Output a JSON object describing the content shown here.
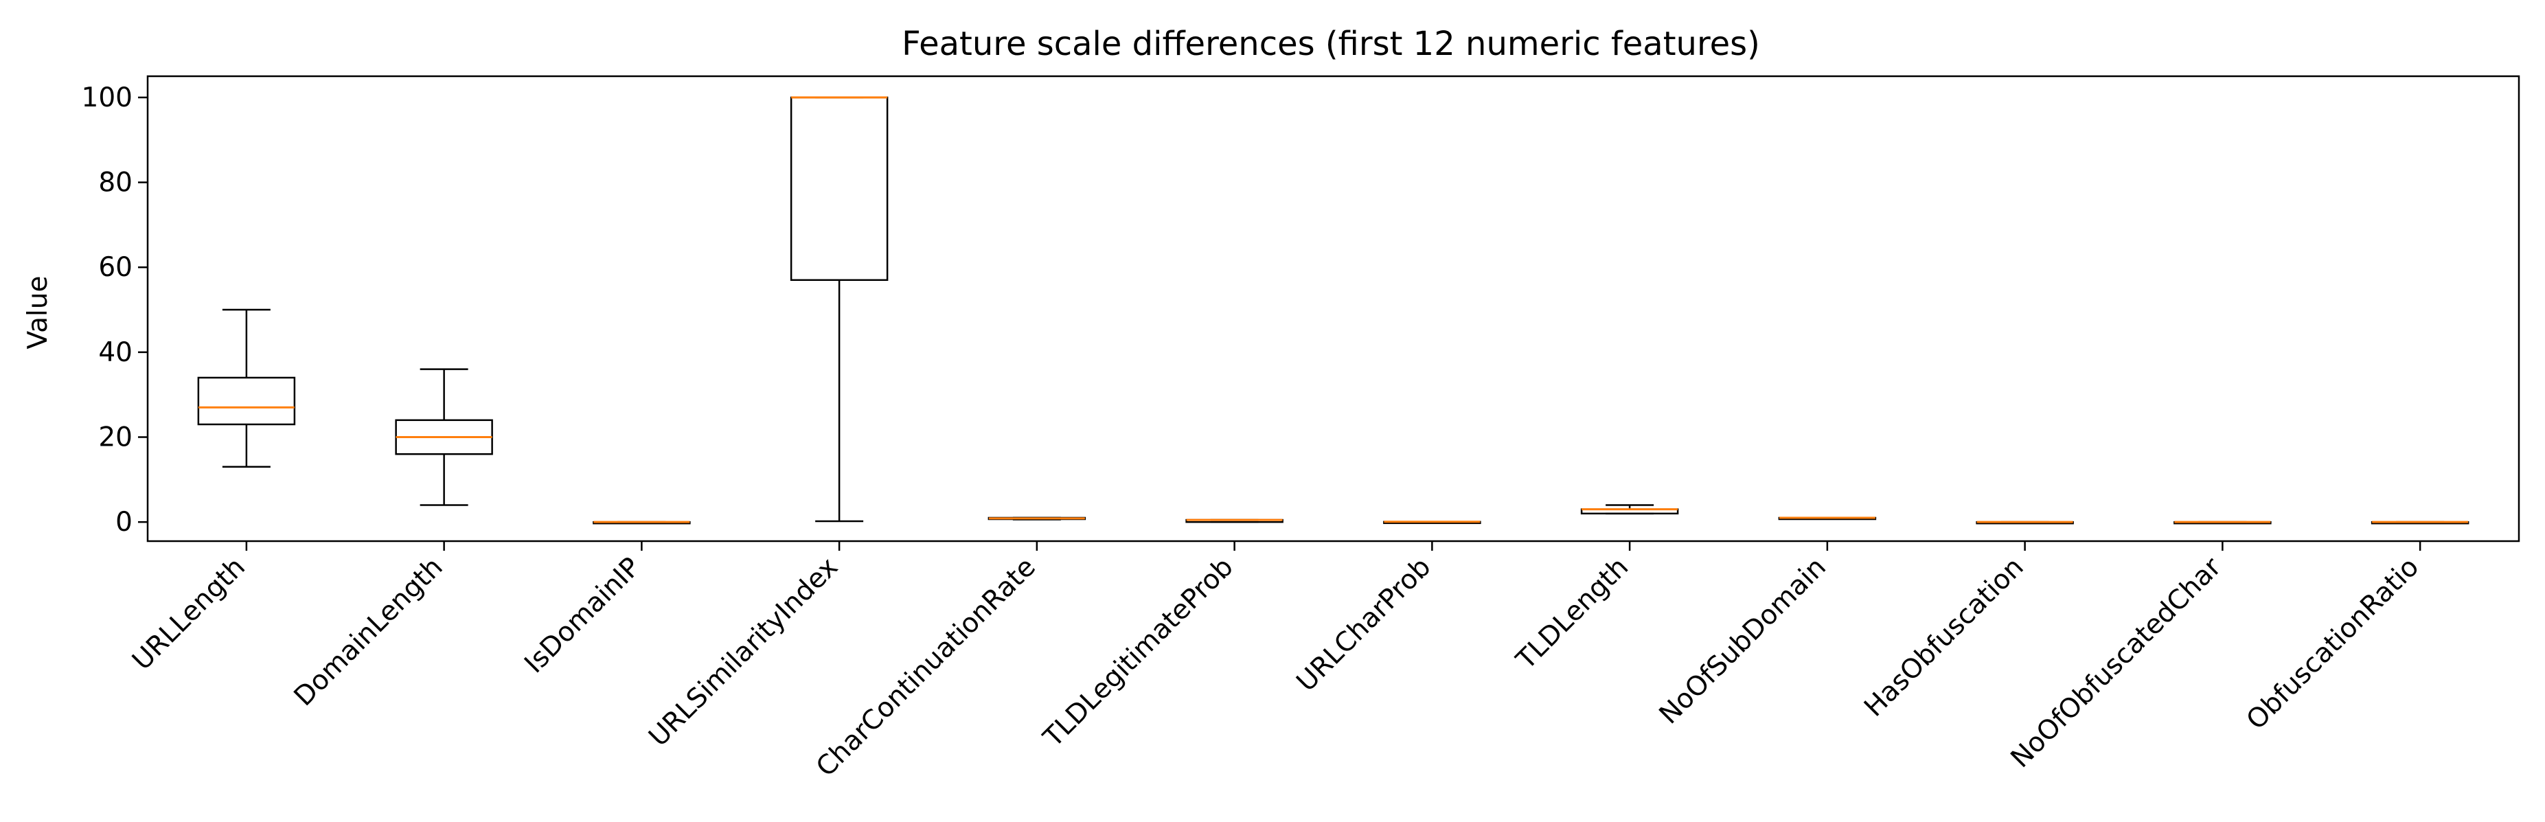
{
  "chart_data": {
    "type": "boxplot",
    "title": "Feature scale differences (first 12 numeric features)",
    "xlabel": "",
    "ylabel": "Value",
    "ylim": [
      -4.5,
      105
    ],
    "yticks": [
      0,
      20,
      40,
      60,
      80,
      100
    ],
    "grid": false,
    "categories": [
      "URLLength",
      "DomainLength",
      "IsDomainIP",
      "URLSimilarityIndex",
      "CharContinuationRate",
      "TLDLegitimateProb",
      "URLCharProb",
      "TLDLength",
      "NoOfSubDomain",
      "HasObfuscation",
      "NoOfObfuscatedChar",
      "ObfuscationRatio"
    ],
    "boxes": [
      {
        "whisker_low": 13,
        "q1": 23,
        "median": 27,
        "q3": 34,
        "whisker_high": 50
      },
      {
        "whisker_low": 4,
        "q1": 16,
        "median": 20,
        "q3": 24,
        "whisker_high": 36
      },
      {
        "whisker_low": 0,
        "q1": 0,
        "median": 0,
        "q3": 0,
        "whisker_high": 0
      },
      {
        "whisker_low": 0.2,
        "q1": 57,
        "median": 100,
        "q3": 100,
        "whisker_high": 100
      },
      {
        "whisker_low": 0.6,
        "q1": 0.7,
        "median": 0.85,
        "q3": 1,
        "whisker_high": 1
      },
      {
        "whisker_low": 0,
        "q1": 0,
        "median": 0.5,
        "q3": 0.5,
        "whisker_high": 0.52
      },
      {
        "whisker_low": 0.04,
        "q1": 0.05,
        "median": 0.06,
        "q3": 0.06,
        "whisker_high": 0.07
      },
      {
        "whisker_low": 2,
        "q1": 2,
        "median": 3,
        "q3": 3,
        "whisker_high": 4
      },
      {
        "whisker_low": 1,
        "q1": 1,
        "median": 1,
        "q3": 1,
        "whisker_high": 1
      },
      {
        "whisker_low": 0,
        "q1": 0,
        "median": 0,
        "q3": 0,
        "whisker_high": 0
      },
      {
        "whisker_low": 0,
        "q1": 0,
        "median": 0,
        "q3": 0,
        "whisker_high": 0
      },
      {
        "whisker_low": 0,
        "q1": 0,
        "median": 0,
        "q3": 0,
        "whisker_high": 0
      }
    ],
    "colors": {
      "box": "#000000",
      "median": "#ff7f0e"
    }
  }
}
